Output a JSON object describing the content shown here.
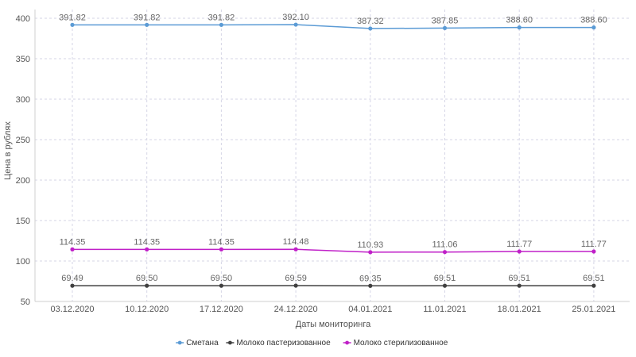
{
  "chart_data": {
    "type": "line",
    "title": "",
    "xlabel": "Даты мониторинга",
    "ylabel": "Цена в рублях",
    "categories": [
      "03.12.2020",
      "10.12.2020",
      "17.12.2020",
      "24.12.2020",
      "04.01.2021",
      "11.01.2021",
      "18.01.2021",
      "25.01.2021"
    ],
    "ylim": [
      50,
      400
    ],
    "yticks": [
      50,
      100,
      150,
      200,
      250,
      300,
      350,
      400
    ],
    "grid": true,
    "legend_position": "bottom-center",
    "series": [
      {
        "name": "Сметана",
        "color": "#5b9bd5",
        "values": [
          391.82,
          391.82,
          391.82,
          392.1,
          387.32,
          387.85,
          388.6,
          388.6
        ],
        "labels": [
          "391.82",
          "391.82",
          "391.82",
          "392.10",
          "387.32",
          "387.85",
          "388.60",
          "388.60"
        ]
      },
      {
        "name": "Молоко пастеризованное",
        "color": "#404040",
        "values": [
          69.49,
          69.5,
          69.5,
          69.59,
          69.35,
          69.51,
          69.51,
          69.51
        ],
        "labels": [
          "69.49",
          "69.50",
          "69.50",
          "69.59",
          "69.35",
          "69.51",
          "69.51",
          "69.51"
        ]
      },
      {
        "name": "Молоко стерилизованное",
        "color": "#c020c8",
        "values": [
          114.35,
          114.35,
          114.35,
          114.48,
          110.93,
          111.06,
          111.77,
          111.77
        ],
        "labels": [
          "114.35",
          "114.35",
          "114.35",
          "114.48",
          "110.93",
          "111.06",
          "111.77",
          "111.77"
        ]
      }
    ]
  }
}
